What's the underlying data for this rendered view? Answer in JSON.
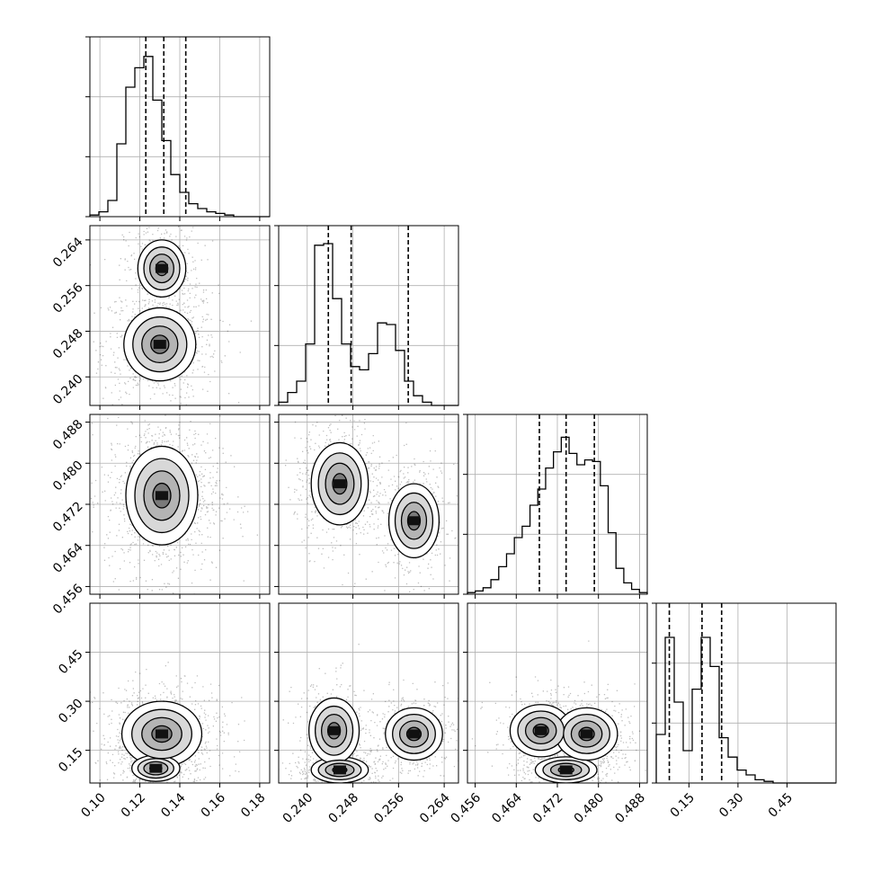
{
  "chart_data": {
    "type": "corner",
    "parameters": [
      {
        "index": 0,
        "axis_range": [
          0.095,
          0.185
        ],
        "ticks": [
          "0.10",
          "0.12",
          "0.14",
          "0.16",
          "0.18"
        ],
        "quantiles": [
          0.123,
          0.132,
          0.143
        ]
      },
      {
        "index": 1,
        "axis_range": [
          0.235,
          0.2665
        ],
        "ticks": [
          "0.240",
          "0.248",
          "0.256",
          "0.264"
        ],
        "quantiles": [
          0.2437,
          0.2477,
          0.2577
        ]
      },
      {
        "index": 2,
        "axis_range": [
          0.4545,
          0.4895
        ],
        "ticks": [
          "0.456",
          "0.464",
          "0.472",
          "0.480",
          "0.488"
        ],
        "quantiles": [
          0.4685,
          0.4737,
          0.4792
        ]
      },
      {
        "index": 3,
        "axis_range": [
          0.05,
          0.6
        ],
        "ticks": [
          "0.15",
          "0.30",
          "0.45"
        ],
        "quantiles": [
          0.09,
          0.19,
          0.25
        ]
      }
    ],
    "histograms": [
      [
        0.01,
        0.03,
        0.1,
        0.45,
        0.8,
        0.92,
        0.99,
        0.72,
        0.47,
        0.26,
        0.15,
        0.08,
        0.05,
        0.03,
        0.02,
        0.01,
        0.0,
        0.0,
        0.0,
        0.0
      ],
      [
        0.02,
        0.08,
        0.15,
        0.38,
        0.99,
        1.0,
        0.66,
        0.38,
        0.24,
        0.22,
        0.32,
        0.51,
        0.5,
        0.34,
        0.15,
        0.06,
        0.02,
        0.0,
        0.0,
        0.0
      ],
      [
        0.01,
        0.02,
        0.04,
        0.09,
        0.17,
        0.25,
        0.35,
        0.42,
        0.55,
        0.65,
        0.78,
        0.88,
        0.97,
        0.87,
        0.8,
        0.83,
        0.82,
        0.67,
        0.38,
        0.16,
        0.07,
        0.03,
        0.01
      ],
      [
        0.3,
        0.9,
        0.5,
        0.2,
        0.58,
        0.9,
        0.72,
        0.28,
        0.16,
        0.08,
        0.05,
        0.02,
        0.01,
        0.0,
        0.0,
        0.0,
        0.0,
        0.0,
        0.0,
        0.0
      ]
    ],
    "density_2d": [
      {
        "row": 1,
        "col": 0,
        "blobs": [
          {
            "x": 0.13,
            "y": 0.2457,
            "sx": 0.009,
            "sy": 0.0032,
            "w": 0.68
          },
          {
            "x": 0.131,
            "y": 0.259,
            "sx": 0.006,
            "sy": 0.0025,
            "w": 0.32
          }
        ]
      },
      {
        "row": 2,
        "col": 0,
        "blobs": [
          {
            "x": 0.131,
            "y": 0.4737,
            "sx": 0.009,
            "sy": 0.0048,
            "w": 1.0
          }
        ]
      },
      {
        "row": 2,
        "col": 1,
        "blobs": [
          {
            "x": 0.2457,
            "y": 0.476,
            "sx": 0.0025,
            "sy": 0.004,
            "w": 0.6
          },
          {
            "x": 0.2587,
            "y": 0.4688,
            "sx": 0.0022,
            "sy": 0.0036,
            "w": 0.4
          }
        ]
      },
      {
        "row": 3,
        "col": 0,
        "blobs": [
          {
            "x": 0.131,
            "y": 0.2,
            "sx": 0.01,
            "sy": 0.05,
            "w": 0.65
          },
          {
            "x": 0.128,
            "y": 0.095,
            "sx": 0.006,
            "sy": 0.02,
            "w": 0.35
          }
        ]
      },
      {
        "row": 3,
        "col": 1,
        "blobs": [
          {
            "x": 0.2457,
            "y": 0.09,
            "sx": 0.0025,
            "sy": 0.02,
            "w": 0.35
          },
          {
            "x": 0.2447,
            "y": 0.21,
            "sx": 0.0022,
            "sy": 0.05,
            "w": 0.3
          },
          {
            "x": 0.2587,
            "y": 0.2,
            "sx": 0.0025,
            "sy": 0.04,
            "w": 0.35
          }
        ]
      },
      {
        "row": 3,
        "col": 2,
        "blobs": [
          {
            "x": 0.4737,
            "y": 0.09,
            "sx": 0.003,
            "sy": 0.02,
            "w": 0.35
          },
          {
            "x": 0.4688,
            "y": 0.21,
            "sx": 0.003,
            "sy": 0.04,
            "w": 0.3
          },
          {
            "x": 0.4777,
            "y": 0.2,
            "sx": 0.003,
            "sy": 0.04,
            "w": 0.35
          }
        ]
      }
    ],
    "grid": true,
    "title": "",
    "xlabel": "",
    "ylabel": ""
  }
}
